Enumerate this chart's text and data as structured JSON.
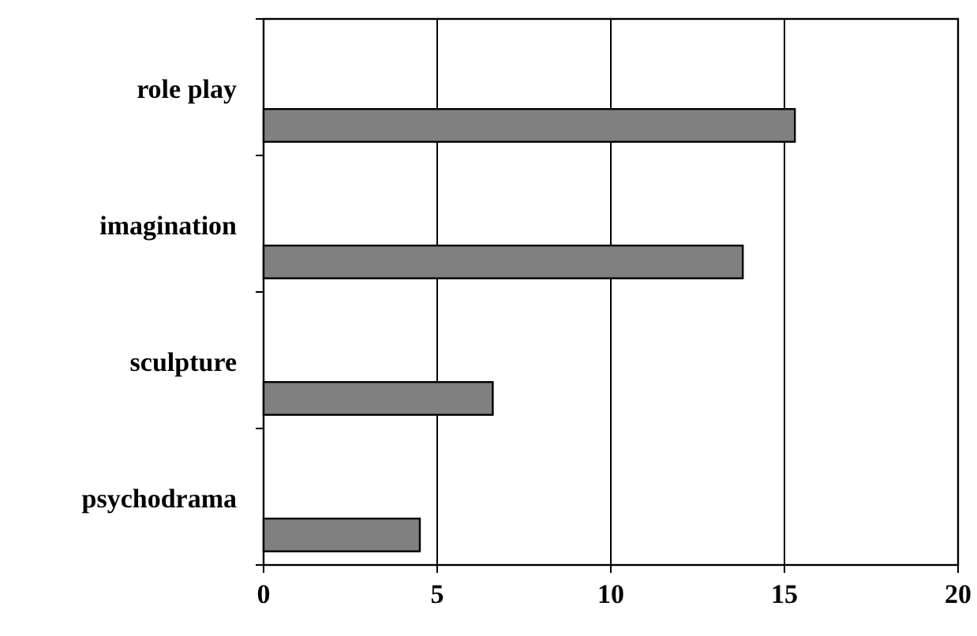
{
  "chart_data": {
    "type": "bar",
    "orientation": "horizontal",
    "categories": [
      "role play",
      "imagination",
      "sculpture",
      "psychodrama"
    ],
    "values": [
      15.3,
      13.8,
      6.6,
      4.5
    ],
    "color": "#808080",
    "xlim": [
      0,
      20
    ],
    "xticks": [
      0,
      5,
      10,
      15,
      20
    ],
    "grid": "x"
  }
}
